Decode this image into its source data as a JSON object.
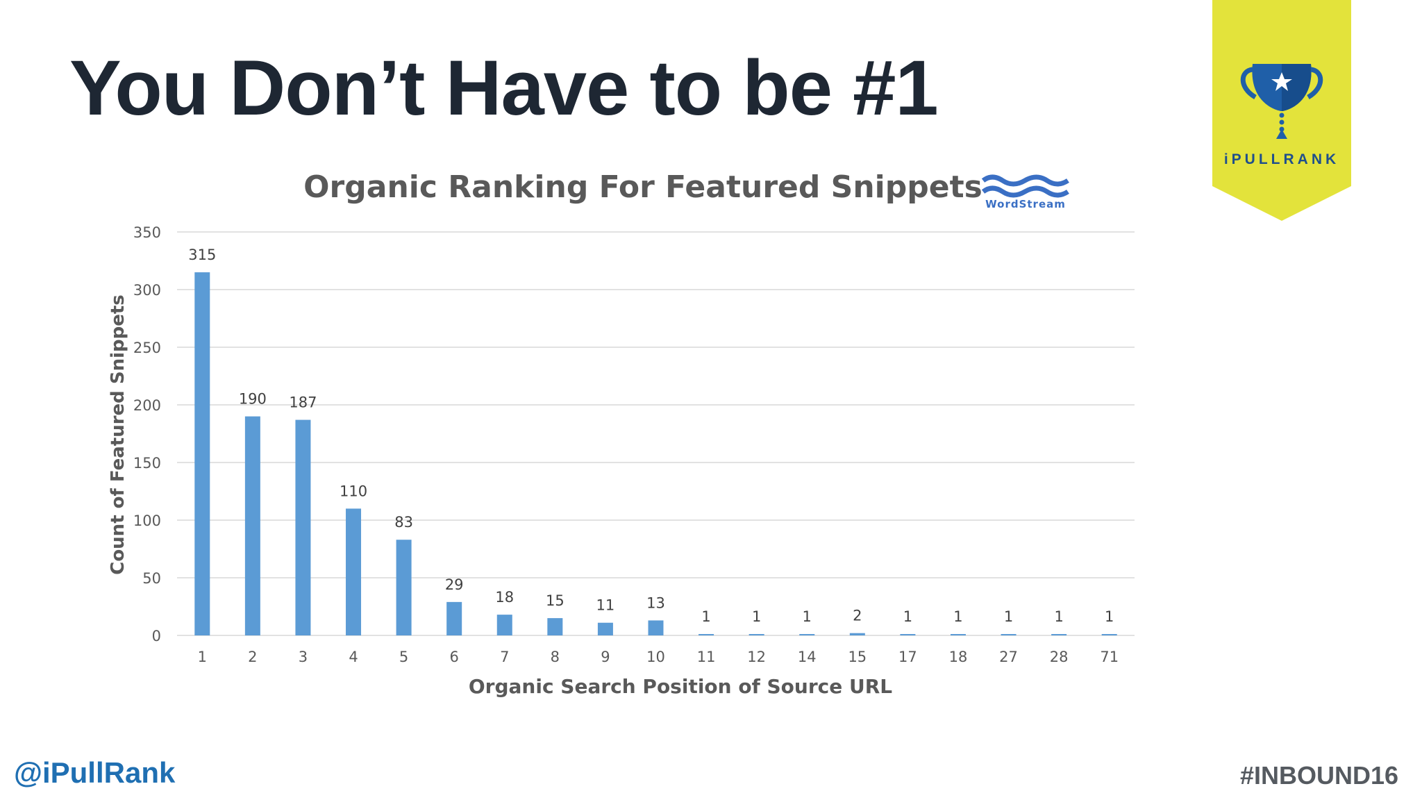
{
  "slide": {
    "title": "You Don’t Have to be #1",
    "footer_left": "@iPullRank",
    "footer_right": "#INBOUND16"
  },
  "brand": {
    "name": "iPULLRANK",
    "icon": "trophy-icon",
    "banner_color": "#e3e33b",
    "trophy_color": "#1f5fa8"
  },
  "source_logo": {
    "name": "WordStream",
    "icon": "wave-logo-icon",
    "color": "#3a6fc4"
  },
  "colors": {
    "bar": "#5b9bd5",
    "grid": "#d9d9d9",
    "axis_text": "#595959",
    "title": "#1e2733"
  },
  "chart_data": {
    "type": "bar",
    "title": "Organic Ranking For Featured Snippets",
    "xlabel": "Organic Search Position of Source URL",
    "ylabel": "Count of Featured Snippets",
    "categories": [
      "1",
      "2",
      "3",
      "4",
      "5",
      "6",
      "7",
      "8",
      "9",
      "10",
      "11",
      "12",
      "14",
      "15",
      "17",
      "18",
      "27",
      "28",
      "71"
    ],
    "values": [
      315,
      190,
      187,
      110,
      83,
      29,
      18,
      15,
      11,
      13,
      1,
      1,
      1,
      2,
      1,
      1,
      1,
      1,
      1
    ],
    "data_labels": [
      "315",
      "190",
      "187",
      "110",
      "83",
      "29",
      "18",
      "15",
      "11",
      "13",
      "1",
      "1",
      "1",
      "2",
      "1",
      "1",
      "1",
      "1",
      "1"
    ],
    "ylim": [
      0,
      350
    ],
    "yticks": [
      "0",
      "50",
      "100",
      "150",
      "200",
      "250",
      "300",
      "350"
    ],
    "grid": true,
    "legend": "none"
  }
}
